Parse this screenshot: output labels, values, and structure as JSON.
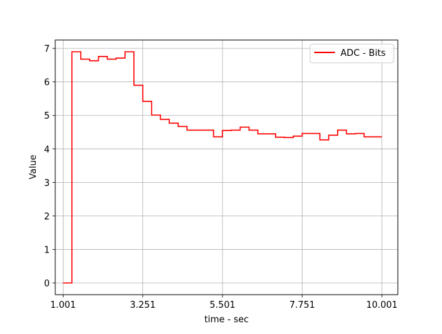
{
  "chart_data": {
    "type": "line",
    "title": "",
    "xlabel": "time - sec",
    "ylabel": "Value",
    "xlim": [
      0.78,
      10.45
    ],
    "ylim": [
      -0.35,
      7.25
    ],
    "x_ticks": [
      1.001,
      3.251,
      5.501,
      7.751,
      10.001
    ],
    "x_tick_labels": [
      "1.001",
      "3.251",
      "5.501",
      "7.751",
      "10.001"
    ],
    "y_ticks": [
      0,
      1,
      2,
      3,
      4,
      5,
      6,
      7
    ],
    "y_tick_labels": [
      "0",
      "1",
      "2",
      "3",
      "4",
      "5",
      "6",
      "7"
    ],
    "grid": true,
    "legend_position": "upper right",
    "series": [
      {
        "name": "ADC - Bits",
        "color": "#ff0000",
        "step": true,
        "x": [
          1.001,
          1.25,
          1.5,
          1.75,
          2.0,
          2.25,
          2.5,
          2.75,
          3.0,
          3.25,
          3.5,
          3.75,
          4.0,
          4.25,
          4.5,
          4.75,
          5.0,
          5.25,
          5.5,
          5.75,
          6.0,
          6.25,
          6.5,
          6.75,
          7.0,
          7.25,
          7.5,
          7.75,
          8.0,
          8.25,
          8.5,
          8.75,
          9.0,
          9.25,
          9.5,
          9.75,
          10.001
        ],
        "y": [
          0.0,
          6.9,
          6.68,
          6.63,
          6.76,
          6.68,
          6.71,
          6.9,
          5.9,
          5.42,
          5.01,
          4.88,
          4.77,
          4.67,
          4.56,
          4.56,
          4.56,
          4.36,
          4.55,
          4.56,
          4.65,
          4.56,
          4.45,
          4.45,
          4.35,
          4.34,
          4.38,
          4.46,
          4.46,
          4.27,
          4.41,
          4.56,
          4.45,
          4.46,
          4.36,
          4.36,
          4.36
        ]
      }
    ]
  }
}
